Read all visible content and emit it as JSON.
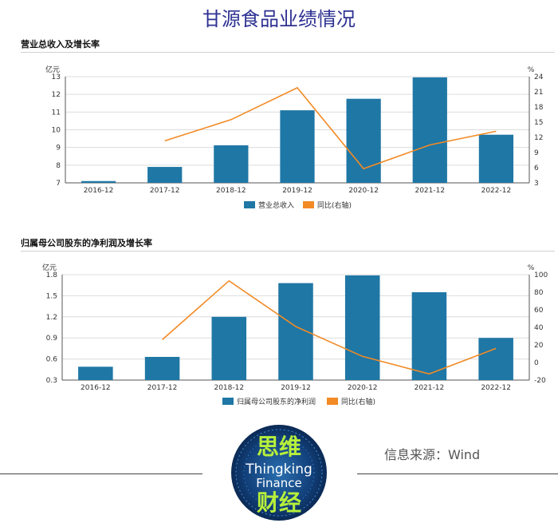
{
  "page_title": "甘源食品业绩情况",
  "source_text": "信息来源：Wind",
  "logo": {
    "line1": "思维",
    "line2": "Thingking",
    "line3": "Finance",
    "line4": "财经"
  },
  "colors": {
    "bar": "#1f77a5",
    "line": "#f28a25",
    "title": "#2e3192"
  },
  "chart_data": [
    {
      "type": "bar",
      "title": "营业总收入及增长率",
      "left_unit": "亿元",
      "right_unit": "%",
      "categories": [
        "2016-12",
        "2017-12",
        "2018-12",
        "2019-12",
        "2020-12",
        "2021-12",
        "2022-12"
      ],
      "ylim": [
        7,
        13
      ],
      "yticks": [
        7,
        8,
        9,
        10,
        11,
        12,
        13
      ],
      "y2lim": [
        3,
        24
      ],
      "y2ticks": [
        3,
        6,
        9,
        12,
        15,
        18,
        21,
        24
      ],
      "grid": true,
      "legend_position": "bottom-center",
      "series": [
        {
          "name": "营业总收入",
          "kind": "bar",
          "axis": "left",
          "values": [
            7.1,
            7.9,
            9.12,
            11.1,
            11.75,
            12.96,
            9.72
          ]
        },
        {
          "name": "同比(右轴)",
          "kind": "line",
          "axis": "right",
          "values": [
            null,
            11.3,
            15.5,
            21.8,
            5.8,
            10.5,
            13.2
          ]
        }
      ]
    },
    {
      "type": "bar",
      "title": "归属母公司股东的净利润及增长率",
      "left_unit": "亿元",
      "right_unit": "%",
      "categories": [
        "2016-12",
        "2017-12",
        "2018-12",
        "2019-12",
        "2020-12",
        "2021-12",
        "2022-12"
      ],
      "ylim": [
        0.3,
        1.8
      ],
      "yticks": [
        0.3,
        0.6,
        0.9,
        1.2,
        1.5,
        1.8
      ],
      "y2lim": [
        -20,
        100
      ],
      "y2ticks": [
        -20,
        0,
        20,
        40,
        60,
        80,
        100
      ],
      "grid": true,
      "legend_position": "bottom-center",
      "series": [
        {
          "name": "归属母公司股东的净利润",
          "kind": "bar",
          "axis": "left",
          "values": [
            0.49,
            0.63,
            1.2,
            1.68,
            1.79,
            1.55,
            0.9
          ]
        },
        {
          "name": "同比(右轴)",
          "kind": "line",
          "axis": "right",
          "values": [
            null,
            26,
            93,
            41,
            7,
            -13,
            16
          ]
        }
      ]
    }
  ]
}
